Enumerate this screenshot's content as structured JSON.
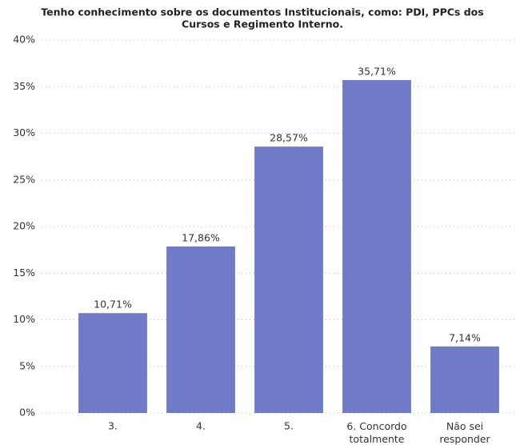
{
  "chart_data": {
    "type": "bar",
    "title": [
      "Tenho conhecimento sobre os documentos Institucionais, como: PDI, PPCs dos",
      "Cursos e Regimento Interno."
    ],
    "categories": [
      "3.",
      "4.",
      "5.",
      "6. Concordo totalmente",
      "Não sei responder"
    ],
    "values": [
      10.71,
      17.86,
      28.57,
      35.71,
      7.14
    ],
    "value_labels": [
      "10,71%",
      "17,86%",
      "28,57%",
      "35,71%",
      "7,14%"
    ],
    "color": "#6f7bc6",
    "ylim": [
      0,
      40
    ],
    "yticks": [
      {
        "value": 0,
        "label": "0%"
      },
      {
        "value": 5,
        "label": "5%"
      },
      {
        "value": 10,
        "label": "10%"
      },
      {
        "value": 15,
        "label": "15%"
      },
      {
        "value": 20,
        "label": "20%"
      },
      {
        "value": 25,
        "label": "25%"
      },
      {
        "value": 30,
        "label": "30%"
      },
      {
        "value": 35,
        "label": "35%"
      },
      {
        "value": 40,
        "label": "40%"
      }
    ],
    "grid": true
  }
}
